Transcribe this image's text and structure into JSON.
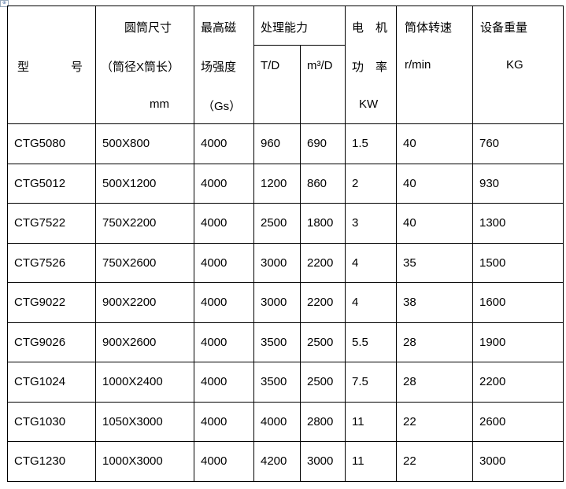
{
  "header": {
    "model": [
      "型",
      "号"
    ],
    "drum_size": [
      "圆筒尺寸",
      "（筒径X筒长）",
      "mm"
    ],
    "field": [
      "最高磁",
      "场强度",
      "（Gs）"
    ],
    "capacity": "处理能力",
    "capacity_td": "T/D",
    "capacity_m3": "m³/D",
    "motor": [
      "电　机",
      "功　率",
      "KW"
    ],
    "speed": [
      "筒体转速",
      "r/min"
    ],
    "weight": [
      "设备重量",
      "KG"
    ]
  },
  "rows": [
    [
      "CTG5080",
      "500X800",
      "4000",
      "960",
      "690",
      "1.5",
      "40",
      "760"
    ],
    [
      "CTG5012",
      "500X1200",
      "4000",
      "1200",
      "860",
      "2",
      "40",
      "930"
    ],
    [
      "CTG7522",
      "750X2200",
      "4000",
      "2500",
      "1800",
      "3",
      "40",
      "1300"
    ],
    [
      "CTG7526",
      "750X2600",
      "4000",
      "3000",
      "2200",
      "4",
      "35",
      "1500"
    ],
    [
      "CTG9022",
      "900X2200",
      "4000",
      "3000",
      "2200",
      "4",
      "38",
      "1600"
    ],
    [
      "CTG9026",
      "900X2600",
      "4000",
      "3500",
      "2500",
      "5.5",
      "28",
      "1900"
    ],
    [
      "CTG1024",
      "1000X2400",
      "4000",
      "3500",
      "2500",
      "7.5",
      "28",
      "2200"
    ],
    [
      "CTG1030",
      "1050X3000",
      "4000",
      "4000",
      "2800",
      "11",
      "22",
      "2600"
    ],
    [
      "CTG1230",
      "1000X3000",
      "4000",
      "4200",
      "3000",
      "11",
      "22",
      "3000"
    ]
  ]
}
